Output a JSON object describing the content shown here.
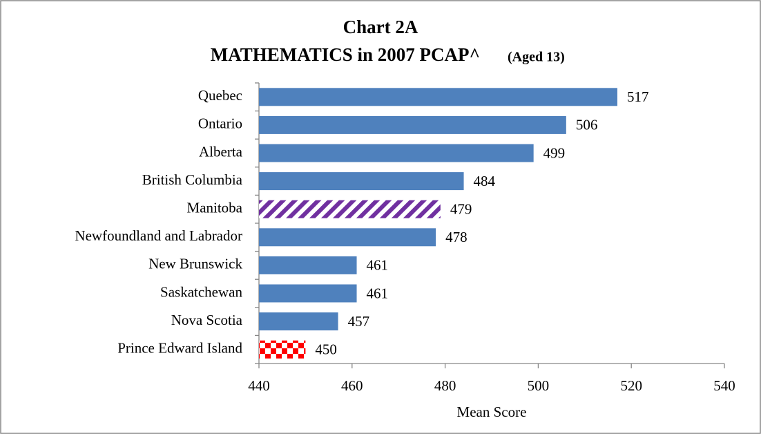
{
  "chart_data": {
    "type": "hbar",
    "title": "Chart 2A",
    "subtitle": "MATHEMATICS in 2007 PCAP^",
    "subtitle_note": "(Aged 13)",
    "x_label": "Mean Score",
    "categories": [
      "Quebec",
      "Ontario",
      "Alberta",
      "British Columbia",
      "Manitoba",
      "Newfoundland and Labrador",
      "New Brunswick",
      "Saskatchewan",
      "Nova Scotia",
      "Prince Edward Island"
    ],
    "values": [
      517,
      506,
      499,
      484,
      479,
      478,
      461,
      461,
      457,
      450
    ],
    "colors": [
      "#4f81bd",
      "#4f81bd",
      "#4f81bd",
      "#4f81bd",
      "#7030a0",
      "#4f81bd",
      "#4f81bd",
      "#4f81bd",
      "#4f81bd",
      "#ff0000"
    ],
    "patterns": [
      "solid",
      "solid",
      "solid",
      "solid",
      "stripes",
      "solid",
      "solid",
      "solid",
      "solid",
      "checker"
    ],
    "xlim": [
      440,
      540
    ],
    "xticks": [
      440,
      460,
      480,
      500,
      520,
      540
    ]
  }
}
